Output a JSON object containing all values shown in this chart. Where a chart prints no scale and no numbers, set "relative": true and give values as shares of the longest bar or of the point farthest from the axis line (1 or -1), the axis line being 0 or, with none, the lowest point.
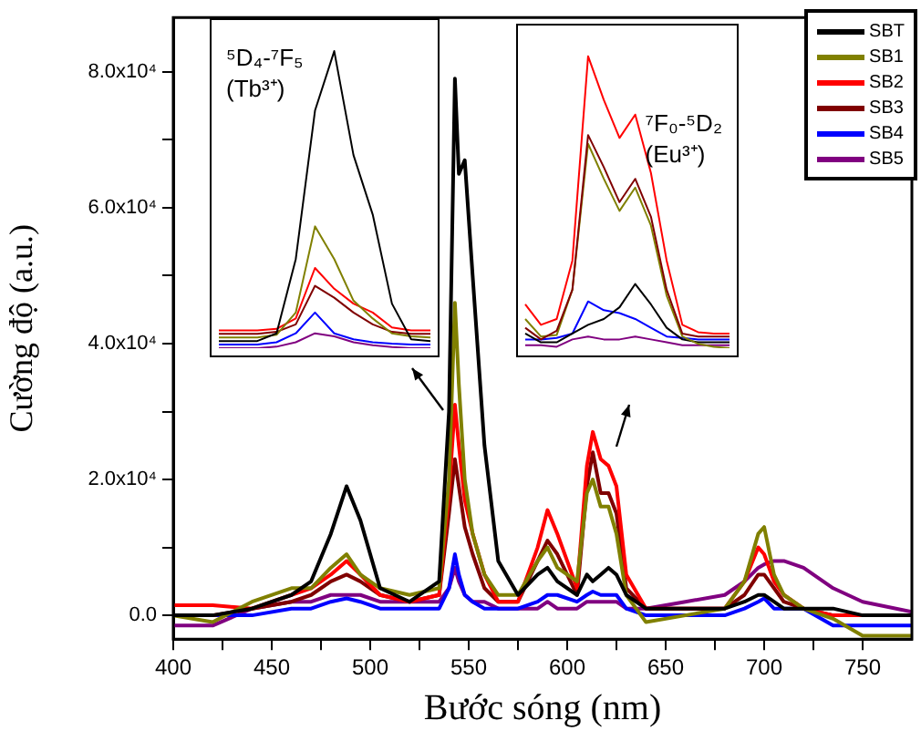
{
  "chart_data": [
    {
      "type": "line",
      "xlabel": "Bước sóng (nm)",
      "ylabel": "Cường độ (a.u.)",
      "legend": "top right",
      "grid": false,
      "marker": "none",
      "line_style": "solid",
      "x": [
        400,
        420,
        440,
        460,
        470,
        480,
        488,
        495,
        505,
        520,
        535,
        540,
        543,
        545,
        548,
        552,
        558,
        565,
        575,
        585,
        590,
        595,
        605,
        610,
        613,
        617,
        621,
        625,
        630,
        640,
        660,
        680,
        690,
        697,
        700,
        705,
        710,
        720,
        735,
        750,
        775
      ],
      "xlim": [
        400,
        775
      ],
      "xticks": [
        400,
        {
          "value": 425,
          "label": null
        },
        450,
        {
          "value": 475,
          "label": null
        },
        500,
        {
          "value": 525,
          "label": null
        },
        550,
        {
          "value": 575,
          "label": null
        },
        600,
        {
          "value": 625,
          "label": null
        },
        650,
        {
          "value": 675,
          "label": null
        },
        700,
        {
          "value": 725,
          "label": null
        },
        750
      ],
      "ylim": [
        -3500,
        88000
      ],
      "yticks": [
        {
          "value": 0,
          "label": "0.0"
        },
        {
          "value": 10000,
          "label": null
        },
        {
          "value": 20000,
          "label": "2.0x10⁴"
        },
        {
          "value": 30000,
          "label": null
        },
        {
          "value": 40000,
          "label": "4.0x10⁴"
        },
        {
          "value": 50000,
          "label": null
        },
        {
          "value": 60000,
          "label": "6.0x10⁴"
        },
        {
          "value": 70000,
          "label": null
        },
        {
          "value": 80000,
          "label": "8.0x10⁴"
        }
      ],
      "series": [
        {
          "name": "SBT",
          "color": "#000000",
          "values": [
            0,
            0,
            1000,
            3000,
            5000,
            12000,
            19000,
            14000,
            4000,
            2000,
            5000,
            30000,
            79000,
            65000,
            67000,
            50000,
            25000,
            8000,
            3000,
            6000,
            7000,
            5000,
            3000,
            6000,
            5000,
            6000,
            7000,
            6000,
            3000,
            1000,
            1000,
            1000,
            2000,
            3000,
            3000,
            2000,
            1000,
            1000,
            1000,
            0,
            0
          ]
        },
        {
          "name": "SB1",
          "color": "#808000",
          "values": [
            0,
            -1000,
            2000,
            4000,
            4000,
            7000,
            9000,
            6000,
            4000,
            3000,
            4000,
            20000,
            46000,
            34000,
            20000,
            12000,
            6000,
            3000,
            3000,
            8000,
            10000,
            7000,
            5000,
            18000,
            20000,
            16000,
            16000,
            12000,
            3000,
            -1000,
            0,
            1000,
            5000,
            12000,
            13000,
            6000,
            3000,
            1000,
            -500,
            -3000,
            -3000
          ]
        },
        {
          "name": "SB2",
          "color": "#ff0000",
          "values": [
            1500,
            1500,
            1000,
            3000,
            4000,
            6000,
            8000,
            6000,
            3000,
            2000,
            3000,
            18000,
            31000,
            25000,
            17000,
            12000,
            6000,
            2000,
            2000,
            10000,
            15500,
            12000,
            4000,
            22000,
            27000,
            23000,
            22000,
            19000,
            6000,
            1000,
            1000,
            1000,
            5000,
            10000,
            9000,
            5000,
            3000,
            1000,
            0,
            0,
            0
          ]
        },
        {
          "name": "SB3",
          "color": "#800000",
          "values": [
            0,
            0,
            1000,
            2000,
            3000,
            5000,
            6000,
            5000,
            3000,
            2000,
            3000,
            15000,
            23000,
            19000,
            13000,
            9000,
            4000,
            2000,
            2000,
            8000,
            11000,
            9000,
            3000,
            19000,
            24000,
            18000,
            18000,
            15000,
            4000,
            1000,
            1000,
            1000,
            3000,
            6000,
            6000,
            4000,
            2000,
            1000,
            0,
            0,
            0
          ]
        },
        {
          "name": "SB4",
          "color": "#0000ff",
          "values": [
            0,
            0,
            0,
            1000,
            1000,
            2000,
            2500,
            2000,
            1000,
            1000,
            1000,
            4000,
            9000,
            6000,
            3000,
            2000,
            1000,
            1000,
            1000,
            2000,
            3000,
            3000,
            2000,
            3000,
            3500,
            3000,
            3000,
            3000,
            1000,
            0,
            0,
            0,
            1000,
            2000,
            2500,
            1000,
            1000,
            1000,
            -1500,
            -1500,
            -1500
          ]
        },
        {
          "name": "SB5",
          "color": "#800080",
          "values": [
            -1500,
            -1500,
            1000,
            2000,
            2000,
            3000,
            3000,
            3000,
            2000,
            2000,
            2000,
            4000,
            7000,
            5000,
            3000,
            2000,
            2000,
            1000,
            1000,
            1000,
            2000,
            1000,
            1000,
            2000,
            2000,
            2000,
            2000,
            2000,
            1000,
            1000,
            2000,
            3000,
            5000,
            7000,
            7500,
            8000,
            8000,
            7000,
            4000,
            2000,
            500
          ]
        }
      ]
    },
    {
      "type": "line",
      "relative": true,
      "grid": false,
      "legend": false,
      "marker": "none",
      "annotations": [
        "⁵D₄-⁷F₅",
        "(Tb³⁺)"
      ],
      "categories": [
        null,
        null,
        null,
        null,
        null,
        null,
        null,
        null,
        null,
        null,
        null,
        null
      ],
      "series": [
        {
          "color": "#000000",
          "values": [
            0.024,
            0.024,
            0.024,
            0.05,
            0.3,
            0.8,
            1.0,
            0.65,
            0.45,
            0.15,
            0.03,
            0.024
          ]
        },
        {
          "color": "#808000",
          "values": [
            0.036,
            0.036,
            0.036,
            0.045,
            0.12,
            0.41,
            0.3,
            0.16,
            0.1,
            0.05,
            0.04,
            0.036
          ]
        },
        {
          "color": "#ff0000",
          "values": [
            0.06,
            0.06,
            0.06,
            0.065,
            0.1,
            0.27,
            0.2,
            0.15,
            0.12,
            0.07,
            0.06,
            0.06
          ]
        },
        {
          "color": "#800000",
          "values": [
            0.048,
            0.048,
            0.048,
            0.055,
            0.08,
            0.21,
            0.17,
            0.12,
            0.08,
            0.055,
            0.048,
            0.048
          ]
        },
        {
          "color": "#0000ff",
          "values": [
            0.012,
            0.012,
            0.012,
            0.02,
            0.05,
            0.12,
            0.05,
            0.03,
            0.02,
            0.015,
            0.012,
            0.012
          ]
        },
        {
          "color": "#800080",
          "values": [
            0,
            0,
            0,
            0.005,
            0.02,
            0.05,
            0.04,
            0.02,
            0.01,
            0.004,
            0,
            0
          ]
        }
      ]
    },
    {
      "type": "line",
      "relative": true,
      "grid": false,
      "legend": false,
      "marker": "none",
      "annotations": [
        "⁷F₀-⁵D₂",
        "(Eu³⁺)"
      ],
      "categories": [
        null,
        null,
        null,
        null,
        null,
        null,
        null,
        null,
        null,
        null,
        null,
        null,
        null,
        null
      ],
      "series": [
        {
          "color": "#ff0000",
          "values": [
            0.15,
            0.08,
            0.1,
            0.3,
            1.0,
            0.85,
            0.72,
            0.8,
            0.6,
            0.3,
            0.08,
            0.055,
            0.05,
            0.05
          ]
        },
        {
          "color": "#800000",
          "values": [
            0.07,
            0.03,
            0.06,
            0.2,
            0.73,
            0.62,
            0.5,
            0.58,
            0.45,
            0.2,
            0.05,
            0.04,
            0.04,
            0.04
          ]
        },
        {
          "color": "#808000",
          "values": [
            0.1,
            0.04,
            0.045,
            0.2,
            0.7,
            0.58,
            0.47,
            0.55,
            0.42,
            0.18,
            0.04,
            0.015,
            0.005,
            0
          ]
        },
        {
          "color": "#000000",
          "values": [
            0.05,
            0.02,
            0.02,
            0.05,
            0.08,
            0.1,
            0.14,
            0.22,
            0.15,
            0.07,
            0.03,
            0.02,
            0.02,
            0.02
          ]
        },
        {
          "color": "#0000ff",
          "values": [
            0.03,
            0.03,
            0.035,
            0.05,
            0.16,
            0.13,
            0.12,
            0.1,
            0.07,
            0.04,
            0.035,
            0.03,
            0.03,
            0.03
          ]
        },
        {
          "color": "#800080",
          "values": [
            0.01,
            0.01,
            0.005,
            0.03,
            0.04,
            0.03,
            0.03,
            0.04,
            0.03,
            0.02,
            0.01,
            0.01,
            0.01,
            0.01
          ]
        }
      ]
    }
  ]
}
